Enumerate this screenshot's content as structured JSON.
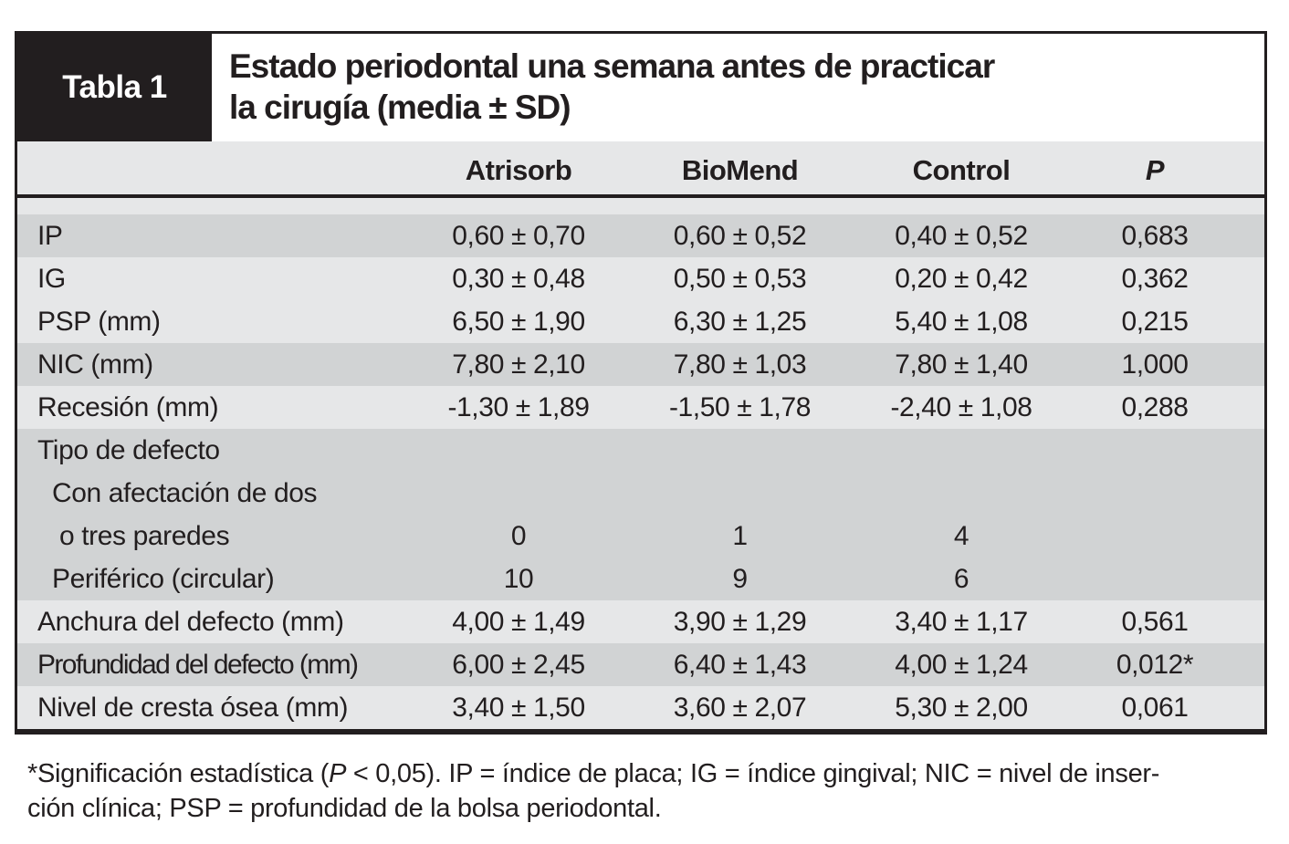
{
  "header": {
    "tag": "Tabla 1",
    "title_line1": "Estado periodontal una semana antes de practicar",
    "title_line2": "la cirugía (media ± SD)"
  },
  "table": {
    "columns": [
      "Atrisorb",
      "BioMend",
      "Control",
      "P"
    ],
    "rows": [
      {
        "label": "IP",
        "values": [
          "0,60 ± 0,70",
          "0,60 ± 0,52",
          "0,40 ± 0,52",
          "0,683"
        ]
      },
      {
        "label": "IG",
        "values": [
          "0,30 ± 0,48",
          "0,50 ± 0,53",
          "0,20 ± 0,42",
          "0,362"
        ]
      },
      {
        "label": "PSP (mm)",
        "values": [
          "6,50 ± 1,90",
          "6,30 ± 1,25",
          "5,40 ± 1,08",
          "0,215"
        ]
      },
      {
        "label": "NIC (mm)",
        "values": [
          "7,80 ± 2,10",
          "7,80 ± 1,03",
          "7,80 ± 1,40",
          "1,000"
        ]
      },
      {
        "label": "Recesión (mm)",
        "values": [
          "-1,30 ± 1,89",
          "-1,50 ± 1,78",
          "-2,40 ± 1,08",
          "0,288"
        ]
      },
      {
        "label": "Tipo de defecto",
        "values": [
          "",
          "",
          "",
          ""
        ]
      },
      {
        "label": "Con afectación de dos",
        "values": [
          "",
          "",
          "",
          ""
        ]
      },
      {
        "label": "o tres paredes",
        "values": [
          "0",
          "1",
          "4",
          ""
        ]
      },
      {
        "label": "Periférico (circular)",
        "values": [
          "10",
          "9",
          "6",
          ""
        ]
      },
      {
        "label": "Anchura del defecto (mm)",
        "values": [
          "4,00 ± 1,49",
          "3,90 ± 1,29",
          "3,40 ± 1,17",
          "0,561"
        ]
      },
      {
        "label": "Profundidad del defecto (mm)",
        "values": [
          "6,00 ± 2,45",
          "6,40 ± 1,43",
          "4,00 ± 1,24",
          "0,012*"
        ]
      },
      {
        "label": "Nivel de cresta ósea (mm)",
        "values": [
          "3,40 ± 1,50",
          "3,60 ± 2,07",
          "5,30 ± 2,00",
          "0,061"
        ]
      }
    ]
  },
  "footnote": {
    "line1_pre": "*Significación estadística (",
    "line1_italic": "P",
    "line1_post": " < 0,05). IP = índice de placa; IG = índice gingival; NIC = nivel de inser-",
    "line2": "ción clínica; PSP = profundidad de la bolsa periodontal."
  },
  "colors": {
    "ink_black": "#221e1f",
    "row_dark_gray": "#d1d3d4",
    "row_light_gray": "#e6e7e8"
  }
}
